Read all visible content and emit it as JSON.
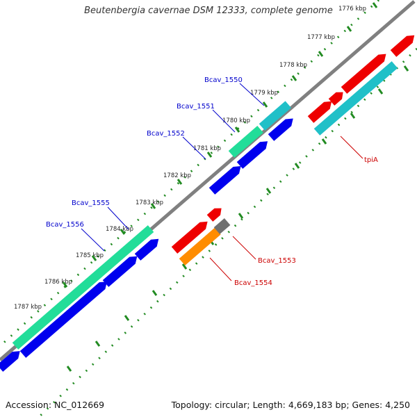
{
  "title": "Beutenbergia cavernae DSM 12333, complete genome",
  "footer": {
    "accession": "Accession: NC_012669",
    "topology": "Topology: circular; Length: 4,669,183 bp; Genes: 4,250"
  },
  "colors": {
    "backbone": "#808080",
    "ticks": "#228b22",
    "forward_cds": "#0000ee",
    "reverse_cds": "#ee0000",
    "label_forward": "#0000cc",
    "label_reverse": "#cc0000",
    "product_cyan": "#20c0c8",
    "product_mint": "#22dd99",
    "product_orange": "#ff8c00",
    "product_gray": "#707070"
  },
  "scale": {
    "unit": "kbp",
    "ticks": [
      "1776 kbp",
      "1777 kbp",
      "1778 kbp",
      "1779 kbp",
      "1780 kbp",
      "1781 kbp",
      "1782 kbp",
      "1783 kbp",
      "1784 kbp",
      "1785 kbp",
      "1786 kbp",
      "1787 kbp"
    ]
  },
  "genes": [
    {
      "name": "Bcav_1550",
      "strand": "forward",
      "color": "label_forward"
    },
    {
      "name": "Bcav_1551",
      "strand": "forward",
      "color": "label_forward"
    },
    {
      "name": "Bcav_1552",
      "strand": "forward",
      "color": "label_forward"
    },
    {
      "name": "Bcav_1555",
      "strand": "forward",
      "color": "label_forward"
    },
    {
      "name": "Bcav_1556",
      "strand": "forward",
      "color": "label_forward"
    },
    {
      "name": "tpiA",
      "strand": "reverse",
      "color": "label_reverse"
    },
    {
      "name": "Bcav_1553",
      "strand": "reverse",
      "color": "label_reverse"
    },
    {
      "name": "Bcav_1554",
      "strand": "reverse",
      "color": "label_reverse"
    }
  ]
}
